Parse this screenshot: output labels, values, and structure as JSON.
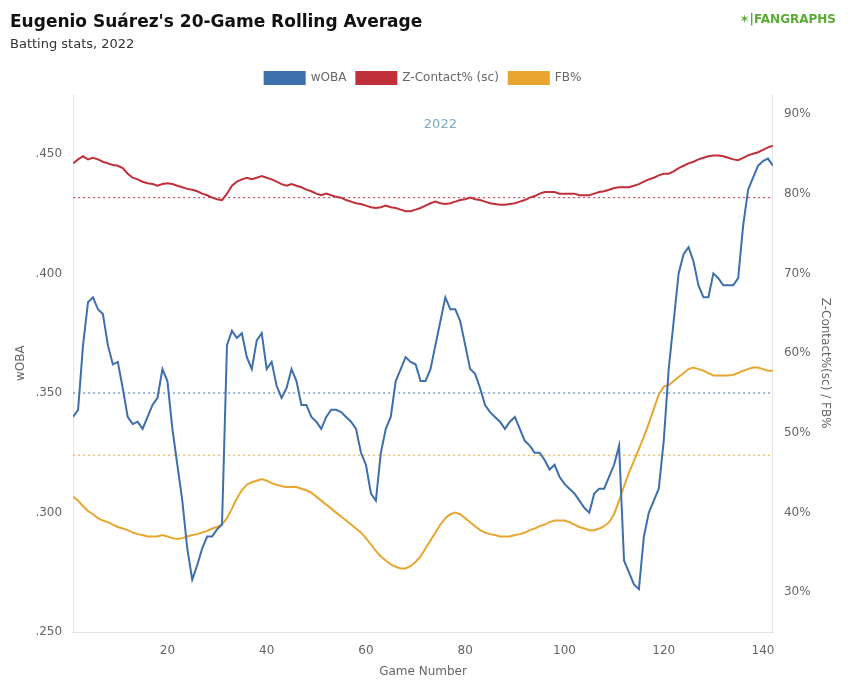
{
  "chart_data": {
    "type": "line",
    "title": "Eugenio Suárez's 20-Game Rolling Average",
    "subtitle": "Batting stats, 2022",
    "xlabel": "Game Number",
    "ylabel": "wOBA",
    "y2label": "Z-Contact%(sc) / FB%",
    "annotations": [
      {
        "text": "2022",
        "x": 75,
        "y": 0.462,
        "color": "#7aaac8"
      },
      {
        "text": "✶|FANGRAPHS",
        "color": "#5aab35"
      }
    ],
    "grid": false,
    "legend": "top",
    "xlim": [
      1,
      142
    ],
    "xticks": [
      20,
      40,
      60,
      80,
      100,
      120,
      140
    ],
    "ylim": [
      0.25,
      0.475
    ],
    "yticks": [
      {
        "value": 0.25,
        "label": ".250"
      },
      {
        "value": 0.3,
        "label": ".300"
      },
      {
        "value": 0.35,
        "label": ".350"
      },
      {
        "value": 0.4,
        "label": ".400"
      },
      {
        "value": 0.45,
        "label": ".450"
      }
    ],
    "y2lim": [
      0.25,
      0.925
    ],
    "y2ticks": [
      {
        "value": 0.3,
        "label": "30%"
      },
      {
        "value": 0.4,
        "label": "40%"
      },
      {
        "value": 0.5,
        "label": "50%"
      },
      {
        "value": 0.6,
        "label": "60%"
      },
      {
        "value": 0.7,
        "label": "70%"
      },
      {
        "value": 0.8,
        "label": "80%"
      },
      {
        "value": 0.9,
        "label": "90%"
      }
    ],
    "x": [
      1,
      2,
      3,
      4,
      5,
      6,
      7,
      8,
      9,
      10,
      11,
      12,
      13,
      14,
      15,
      16,
      17,
      18,
      19,
      20,
      21,
      22,
      23,
      24,
      25,
      26,
      27,
      28,
      29,
      30,
      31,
      32,
      33,
      34,
      35,
      36,
      37,
      38,
      39,
      40,
      41,
      42,
      43,
      44,
      45,
      46,
      47,
      48,
      49,
      50,
      51,
      52,
      53,
      54,
      55,
      56,
      57,
      58,
      59,
      60,
      61,
      62,
      63,
      64,
      65,
      66,
      67,
      68,
      69,
      70,
      71,
      72,
      73,
      74,
      75,
      76,
      77,
      78,
      79,
      80,
      81,
      82,
      83,
      84,
      85,
      86,
      87,
      88,
      89,
      90,
      91,
      92,
      93,
      94,
      95,
      96,
      97,
      98,
      99,
      100,
      101,
      102,
      103,
      104,
      105,
      106,
      107,
      108,
      109,
      110,
      111,
      112,
      113,
      114,
      115,
      116,
      117,
      118,
      119,
      120,
      121,
      122,
      123,
      124,
      125,
      126,
      127,
      128,
      129,
      130,
      131,
      132,
      133,
      134,
      135,
      136,
      137,
      138,
      139,
      140,
      141,
      142
    ],
    "series": [
      {
        "name": "wOBA",
        "color": "#3d6fad",
        "axis": "y",
        "mean": 0.35,
        "values": [
          0.34,
          0.343,
          0.37,
          0.388,
          0.39,
          0.385,
          0.383,
          0.37,
          0.362,
          0.363,
          0.352,
          0.34,
          0.337,
          0.338,
          0.335,
          0.34,
          0.345,
          0.348,
          0.36,
          0.355,
          0.335,
          0.32,
          0.305,
          0.285,
          0.272,
          0.278,
          0.285,
          0.29,
          0.29,
          0.293,
          0.295,
          0.37,
          0.376,
          0.373,
          0.375,
          0.365,
          0.36,
          0.372,
          0.375,
          0.36,
          0.363,
          0.353,
          0.348,
          0.352,
          0.36,
          0.355,
          0.345,
          0.345,
          0.34,
          0.338,
          0.335,
          0.34,
          0.343,
          0.343,
          0.342,
          0.34,
          0.338,
          0.335,
          0.325,
          0.32,
          0.308,
          0.305,
          0.325,
          0.335,
          0.34,
          0.355,
          0.36,
          0.365,
          0.363,
          0.362,
          0.355,
          0.355,
          0.36,
          0.37,
          0.38,
          0.39,
          0.385,
          0.385,
          0.38,
          0.37,
          0.36,
          0.358,
          0.352,
          0.345,
          0.342,
          0.34,
          0.338,
          0.335,
          0.338,
          0.34,
          0.335,
          0.33,
          0.328,
          0.325,
          0.325,
          0.322,
          0.318,
          0.32,
          0.315,
          0.312,
          0.31,
          0.308,
          0.305,
          0.302,
          0.3,
          0.308,
          0.31,
          0.31,
          0.315,
          0.32,
          0.328,
          0.28,
          0.275,
          0.27,
          0.268,
          0.29,
          0.3,
          0.305,
          0.31,
          0.33,
          0.36,
          0.38,
          0.4,
          0.408,
          0.411,
          0.405,
          0.395,
          0.39,
          0.39,
          0.4,
          0.398,
          0.395,
          0.395,
          0.395,
          0.398,
          0.42,
          0.435,
          0.44,
          0.445,
          0.447,
          0.448,
          0.445
        ]
      },
      {
        "name": "Z-Contact% (sc)",
        "color": "#c0303a",
        "axis": "y2",
        "mean": 0.795,
        "values": [
          0.838,
          0.843,
          0.847,
          0.843,
          0.845,
          0.843,
          0.84,
          0.838,
          0.836,
          0.835,
          0.832,
          0.825,
          0.82,
          0.818,
          0.815,
          0.813,
          0.812,
          0.81,
          0.812,
          0.813,
          0.812,
          0.81,
          0.808,
          0.806,
          0.805,
          0.803,
          0.8,
          0.798,
          0.795,
          0.793,
          0.792,
          0.8,
          0.81,
          0.815,
          0.818,
          0.82,
          0.818,
          0.82,
          0.822,
          0.82,
          0.818,
          0.815,
          0.812,
          0.81,
          0.812,
          0.81,
          0.808,
          0.805,
          0.803,
          0.8,
          0.798,
          0.8,
          0.798,
          0.796,
          0.795,
          0.792,
          0.79,
          0.788,
          0.787,
          0.785,
          0.783,
          0.782,
          0.783,
          0.785,
          0.783,
          0.782,
          0.78,
          0.778,
          0.778,
          0.78,
          0.782,
          0.785,
          0.788,
          0.79,
          0.788,
          0.787,
          0.788,
          0.79,
          0.792,
          0.793,
          0.795,
          0.793,
          0.792,
          0.79,
          0.788,
          0.787,
          0.786,
          0.786,
          0.787,
          0.788,
          0.79,
          0.792,
          0.795,
          0.797,
          0.8,
          0.802,
          0.802,
          0.802,
          0.8,
          0.8,
          0.8,
          0.8,
          0.798,
          0.798,
          0.798,
          0.8,
          0.802,
          0.803,
          0.805,
          0.807,
          0.808,
          0.808,
          0.808,
          0.81,
          0.812,
          0.815,
          0.818,
          0.82,
          0.823,
          0.825,
          0.825,
          0.828,
          0.832,
          0.835,
          0.838,
          0.84,
          0.843,
          0.845,
          0.847,
          0.848,
          0.848,
          0.847,
          0.845,
          0.843,
          0.842,
          0.845,
          0.848,
          0.85,
          0.852,
          0.855,
          0.858,
          0.86
        ]
      },
      {
        "name": "FB%",
        "color": "#e8a630",
        "axis": "y2",
        "mean": 0.472,
        "values": [
          0.42,
          0.415,
          0.408,
          0.402,
          0.398,
          0.393,
          0.39,
          0.388,
          0.385,
          0.382,
          0.38,
          0.378,
          0.375,
          0.373,
          0.372,
          0.37,
          0.37,
          0.37,
          0.372,
          0.37,
          0.368,
          0.367,
          0.368,
          0.37,
          0.372,
          0.373,
          0.375,
          0.377,
          0.38,
          0.382,
          0.385,
          0.393,
          0.405,
          0.418,
          0.428,
          0.435,
          0.438,
          0.44,
          0.442,
          0.44,
          0.437,
          0.435,
          0.433,
          0.432,
          0.432,
          0.432,
          0.43,
          0.428,
          0.425,
          0.42,
          0.415,
          0.41,
          0.405,
          0.4,
          0.395,
          0.39,
          0.385,
          0.38,
          0.375,
          0.368,
          0.36,
          0.352,
          0.345,
          0.34,
          0.335,
          0.332,
          0.33,
          0.33,
          0.333,
          0.338,
          0.345,
          0.355,
          0.365,
          0.375,
          0.385,
          0.393,
          0.398,
          0.4,
          0.398,
          0.393,
          0.388,
          0.383,
          0.378,
          0.375,
          0.373,
          0.372,
          0.37,
          0.37,
          0.37,
          0.372,
          0.373,
          0.375,
          0.378,
          0.38,
          0.383,
          0.385,
          0.388,
          0.39,
          0.39,
          0.39,
          0.388,
          0.385,
          0.382,
          0.38,
          0.378,
          0.378,
          0.38,
          0.383,
          0.388,
          0.398,
          0.415,
          0.433,
          0.45,
          0.465,
          0.48,
          0.495,
          0.512,
          0.53,
          0.548,
          0.558,
          0.56,
          0.565,
          0.57,
          0.575,
          0.58,
          0.582,
          0.58,
          0.578,
          0.575,
          0.572,
          0.572,
          0.572,
          0.572,
          0.573,
          0.575,
          0.578,
          0.58,
          0.582,
          0.582,
          0.58,
          0.578,
          0.578
        ]
      }
    ]
  }
}
